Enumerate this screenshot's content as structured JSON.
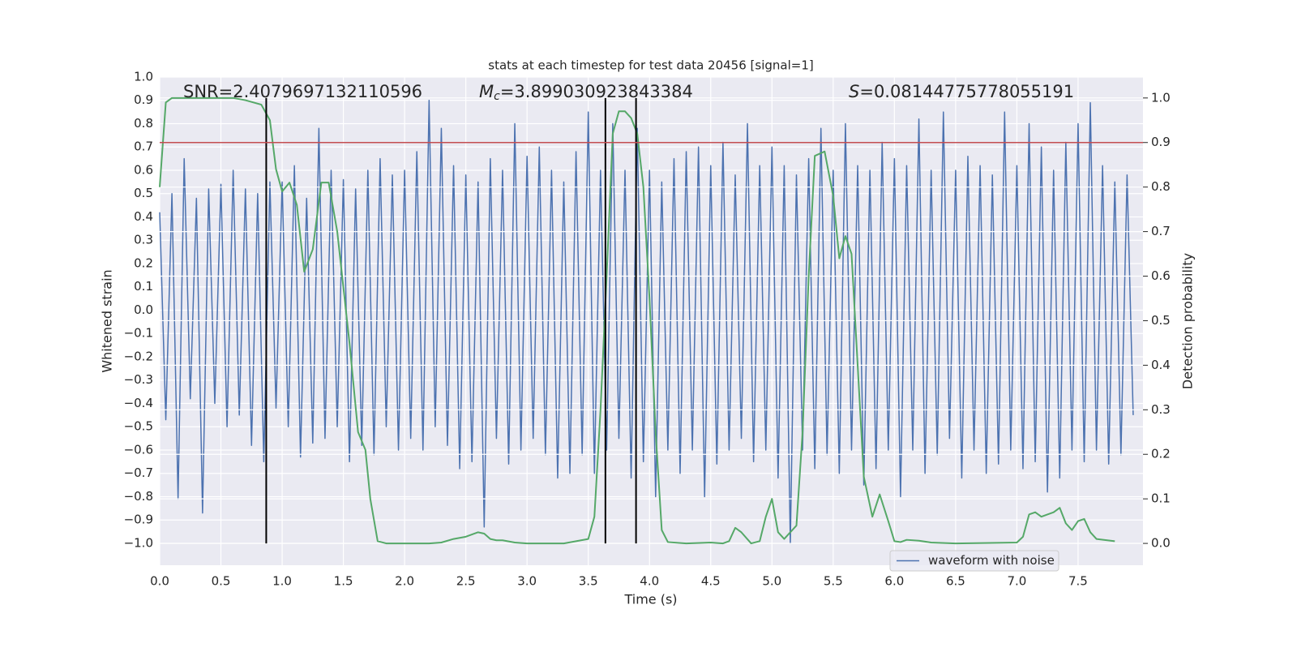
{
  "chart_data": {
    "type": "line",
    "title": "stats at each timestep for test data 20456 [signal=1]",
    "x_label": "Time (s)",
    "y_label": "Whitened strain",
    "y2_label": "Detection probability",
    "xlim": [
      0,
      8.03
    ],
    "ylim": [
      -1.094,
      1.0
    ],
    "y2lim": [
      -0.049,
      1.047
    ],
    "xticks": [
      {
        "value": 0,
        "label": "0.0"
      },
      0.5,
      {
        "value": 1,
        "label": "1.0"
      },
      1.5,
      {
        "value": 2,
        "label": "2.0"
      },
      2.5,
      {
        "value": 3,
        "label": "3.0"
      },
      3.5,
      {
        "value": 4,
        "label": "4.0"
      },
      4.5,
      {
        "value": 5,
        "label": "5.0"
      },
      5.5,
      {
        "value": 6,
        "label": "6.0"
      },
      6.5,
      {
        "value": 7,
        "label": "7.0"
      },
      7.5
    ],
    "yticks": [
      {
        "value": -1.0,
        "label": "−1.0"
      },
      {
        "value": -0.9,
        "label": "−0.9"
      },
      {
        "value": -0.8,
        "label": "−0.8"
      },
      {
        "value": -0.7,
        "label": "−0.7"
      },
      {
        "value": -0.6,
        "label": "−0.6"
      },
      {
        "value": -0.5,
        "label": "−0.5"
      },
      {
        "value": -0.4,
        "label": "−0.4"
      },
      {
        "value": -0.3,
        "label": "−0.3"
      },
      {
        "value": -0.2,
        "label": "−0.2"
      },
      {
        "value": -0.1,
        "label": "−0.1"
      },
      {
        "value": 0,
        "label": "0.0"
      },
      0.1,
      0.2,
      0.3,
      0.4,
      0.5,
      0.6,
      0.7,
      0.8,
      0.9,
      {
        "value": 1.0,
        "label": "1.0"
      }
    ],
    "y2ticks": [
      {
        "value": 0,
        "label": "0.0"
      },
      0.1,
      0.2,
      0.3,
      0.4,
      0.5,
      0.6,
      0.7,
      0.8,
      0.9,
      {
        "value": 1.0,
        "label": "1.0"
      }
    ],
    "grid": true,
    "background": "#eaeaf2",
    "legend_position": "lower right",
    "series": [
      {
        "name": "waveform with noise",
        "color": "#4c72b0",
        "x": [
          0,
          0.05,
          0.1,
          0.15,
          0.2,
          0.25,
          0.3,
          0.35,
          0.4,
          0.45,
          0.5,
          0.55,
          0.6,
          0.65,
          0.7,
          0.75,
          0.8,
          0.85,
          0.9,
          0.95,
          1.0,
          1.05,
          1.1,
          1.15,
          1.2,
          1.25,
          1.3,
          1.35,
          1.4,
          1.45,
          1.5,
          1.55,
          1.6,
          1.65,
          1.7,
          1.75,
          1.8,
          1.85,
          1.9,
          1.95,
          2.0,
          2.05,
          2.1,
          2.15,
          2.2,
          2.25,
          2.3,
          2.35,
          2.4,
          2.45,
          2.5,
          2.55,
          2.6,
          2.65,
          2.7,
          2.75,
          2.8,
          2.85,
          2.9,
          2.95,
          3.0,
          3.05,
          3.1,
          3.15,
          3.2,
          3.25,
          3.3,
          3.35,
          3.4,
          3.45,
          3.5,
          3.55,
          3.6,
          3.65,
          3.7,
          3.75,
          3.8,
          3.85,
          3.9,
          3.95,
          4.0,
          4.05,
          4.1,
          4.15,
          4.2,
          4.25,
          4.3,
          4.35,
          4.4,
          4.45,
          4.5,
          4.55,
          4.6,
          4.65,
          4.7,
          4.75,
          4.8,
          4.85,
          4.9,
          4.95,
          5.0,
          5.05,
          5.1,
          5.15,
          5.2,
          5.25,
          5.3,
          5.35,
          5.4,
          5.45,
          5.5,
          5.55,
          5.6,
          5.65,
          5.7,
          5.75,
          5.8,
          5.85,
          5.9,
          5.95,
          6.0,
          6.05,
          6.1,
          6.15,
          6.2,
          6.25,
          6.3,
          6.35,
          6.4,
          6.45,
          6.5,
          6.55,
          6.6,
          6.65,
          6.7,
          6.75,
          6.8,
          6.85,
          6.9,
          6.95,
          7.0,
          7.05,
          7.1,
          7.15,
          7.2,
          7.25,
          7.3,
          7.35,
          7.4,
          7.45,
          7.5,
          7.55,
          7.6,
          7.65,
          7.7,
          7.75,
          7.8,
          7.85,
          7.9,
          7.95
        ],
        "values": [
          0.42,
          -0.47,
          0.5,
          -0.81,
          0.65,
          -0.38,
          0.48,
          -0.87,
          0.52,
          -0.4,
          0.54,
          -0.5,
          0.6,
          -0.45,
          0.52,
          -0.58,
          0.5,
          -0.65,
          0.55,
          -0.42,
          0.55,
          -0.5,
          0.62,
          -0.63,
          0.48,
          -0.57,
          0.78,
          -0.55,
          0.6,
          -0.5,
          0.56,
          -0.65,
          0.52,
          -0.58,
          0.6,
          -0.62,
          0.65,
          -0.5,
          0.58,
          -0.6,
          0.6,
          -0.55,
          0.68,
          -0.6,
          0.9,
          -0.5,
          0.78,
          -0.58,
          0.62,
          -0.68,
          0.58,
          -0.65,
          0.55,
          -0.93,
          0.65,
          -0.55,
          0.6,
          -0.66,
          0.8,
          -0.6,
          0.66,
          -0.55,
          0.7,
          -0.62,
          0.6,
          -0.72,
          0.55,
          -0.7,
          0.68,
          -0.62,
          0.85,
          -0.7,
          0.6,
          -0.6,
          0.8,
          -0.55,
          0.6,
          -0.72,
          0.78,
          -0.65,
          0.6,
          -0.8,
          0.55,
          -0.6,
          0.65,
          -0.7,
          0.68,
          -0.6,
          0.7,
          -0.8,
          0.62,
          -0.66,
          0.72,
          -0.6,
          0.58,
          -0.55,
          0.8,
          -0.65,
          0.62,
          -0.6,
          0.7,
          -0.72,
          0.62,
          -1.0,
          0.58,
          -0.6,
          0.65,
          -0.68,
          0.78,
          -0.62,
          0.6,
          -0.7,
          0.8,
          -0.6,
          0.62,
          -0.75,
          0.6,
          -0.68,
          0.72,
          -0.6,
          0.65,
          -0.8,
          0.62,
          -0.6,
          0.82,
          -0.7,
          0.6,
          -0.62,
          0.85,
          -0.55,
          0.6,
          -0.72,
          0.66,
          -0.6,
          0.62,
          -0.7,
          0.58,
          -0.66,
          0.85,
          -0.6,
          0.62,
          -0.68,
          0.8,
          -0.65,
          0.7,
          -0.78,
          0.6,
          -0.72,
          0.72,
          -0.6,
          0.8,
          -0.65,
          0.89,
          -0.6,
          0.62,
          -0.66,
          0.55,
          -0.62,
          0.58,
          -0.45
        ]
      },
      {
        "color": "#55a868",
        "axis": "y2",
        "x": [
          0,
          0.05,
          0.1,
          0.2,
          0.4,
          0.6,
          0.7,
          0.83,
          0.9,
          0.95,
          1.0,
          1.06,
          1.12,
          1.18,
          1.25,
          1.32,
          1.38,
          1.45,
          1.55,
          1.62,
          1.68,
          1.72,
          1.78,
          1.85,
          2.0,
          2.2,
          2.3,
          2.4,
          2.5,
          2.55,
          2.6,
          2.65,
          2.7,
          2.75,
          2.8,
          2.9,
          3.0,
          3.3,
          3.4,
          3.5,
          3.55,
          3.6,
          3.65,
          3.7,
          3.75,
          3.8,
          3.85,
          3.9,
          3.95,
          4.0,
          4.05,
          4.1,
          4.15,
          4.3,
          4.5,
          4.6,
          4.65,
          4.7,
          4.75,
          4.83,
          4.9,
          4.95,
          5.0,
          5.05,
          5.1,
          5.2,
          5.25,
          5.3,
          5.35,
          5.43,
          5.5,
          5.55,
          5.6,
          5.65,
          5.7,
          5.75,
          5.82,
          5.88,
          5.95,
          6.0,
          6.05,
          6.1,
          6.2,
          6.3,
          6.5,
          7.0,
          7.05,
          7.1,
          7.15,
          7.2,
          7.3,
          7.35,
          7.4,
          7.45,
          7.5,
          7.55,
          7.6,
          7.65,
          7.8
        ],
        "values": [
          0.8,
          0.99,
          1.0,
          1.0,
          1.0,
          1.0,
          0.995,
          0.985,
          0.95,
          0.84,
          0.79,
          0.81,
          0.76,
          0.61,
          0.66,
          0.81,
          0.81,
          0.7,
          0.45,
          0.25,
          0.21,
          0.1,
          0.005,
          0.0,
          0.0,
          0.0,
          0.002,
          0.01,
          0.015,
          0.02,
          0.025,
          0.022,
          0.01,
          0.007,
          0.007,
          0.002,
          0.0,
          0.0,
          0.005,
          0.01,
          0.06,
          0.3,
          0.6,
          0.92,
          0.97,
          0.97,
          0.955,
          0.92,
          0.8,
          0.55,
          0.25,
          0.03,
          0.003,
          0.0,
          0.002,
          0.0,
          0.005,
          0.035,
          0.025,
          0.0,
          0.005,
          0.06,
          0.1,
          0.025,
          0.01,
          0.04,
          0.25,
          0.6,
          0.87,
          0.88,
          0.78,
          0.64,
          0.69,
          0.65,
          0.4,
          0.15,
          0.06,
          0.11,
          0.05,
          0.005,
          0.003,
          0.008,
          0.006,
          0.002,
          0.0,
          0.002,
          0.015,
          0.065,
          0.07,
          0.06,
          0.07,
          0.08,
          0.045,
          0.03,
          0.05,
          0.055,
          0.025,
          0.01,
          0.005
        ]
      }
    ],
    "hlines": [
      {
        "axis": "y2",
        "value": 0.9,
        "color": "#c44e52"
      }
    ],
    "vlines": [
      {
        "value": 0.87,
        "range": [
          0,
          1
        ],
        "color": "#000000"
      },
      {
        "value": 3.64,
        "range": [
          0,
          1
        ],
        "color": "#000000"
      },
      {
        "value": 3.89,
        "range": [
          0,
          1
        ],
        "color": "#000000"
      }
    ],
    "annotations": [
      {
        "text": "SNR=2.4079697132110596"
      },
      {
        "symbol": "M",
        "subscript": "c",
        "text": "=3.899030923843384"
      },
      {
        "symbol": "S",
        "text": "=0.08144775778055191"
      }
    ]
  }
}
